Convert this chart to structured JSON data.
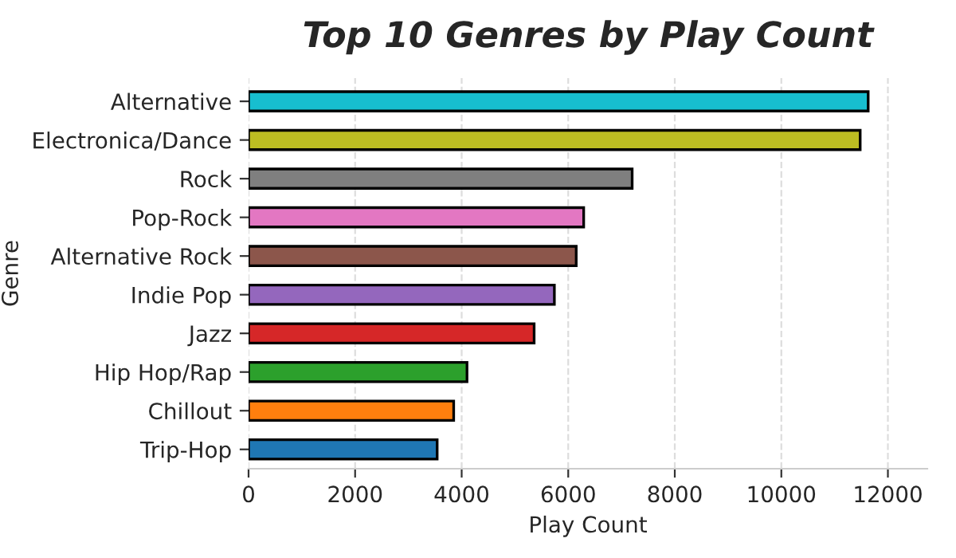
{
  "chart_data": {
    "type": "bar",
    "orientation": "horizontal",
    "title": "Top 10 Genres by Play Count",
    "xlabel": "Play Count",
    "ylabel": "Genre",
    "categories": [
      "Alternative",
      "Electronica/Dance",
      "Rock",
      "Pop-Rock",
      "Alternative Rock",
      "Indie Pop",
      "Jazz",
      "Hip Hop/Rap",
      "Chillout",
      "Trip-Hop"
    ],
    "values": [
      11630,
      11480,
      7200,
      6290,
      6150,
      5740,
      5360,
      4100,
      3850,
      3540
    ],
    "colors": [
      "#17becf",
      "#bcbd22",
      "#7f7f7f",
      "#e377c2",
      "#8c564b",
      "#9467bd",
      "#d62728",
      "#2ca02c",
      "#ff7f0e",
      "#1f77b4"
    ],
    "xlim": [
      0,
      12740
    ],
    "xticks": [
      0,
      2000,
      4000,
      6000,
      8000,
      10000,
      12000
    ],
    "grid": "x",
    "legend": false
  }
}
